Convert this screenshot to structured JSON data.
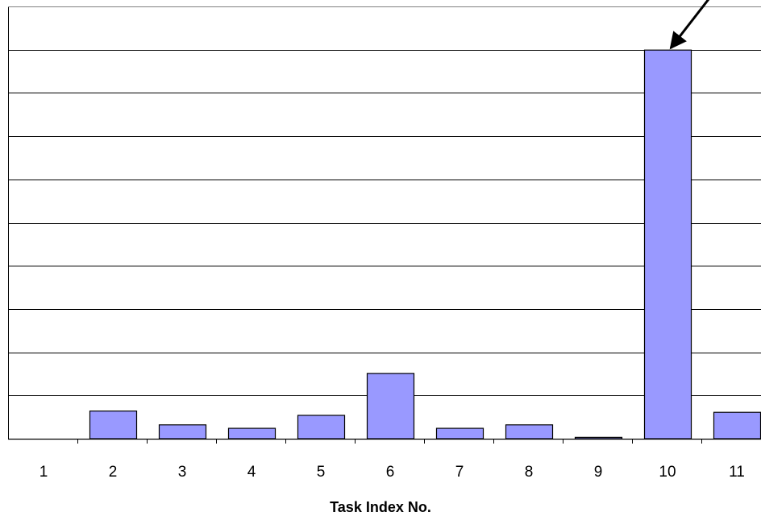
{
  "chart_data": {
    "type": "bar",
    "title": "",
    "xlabel": "Task Index No.",
    "ylabel": "",
    "categories": [
      "1",
      "2",
      "3",
      "4",
      "5",
      "6",
      "7",
      "8",
      "9",
      "10",
      "11"
    ],
    "values": [
      0,
      0.65,
      0.33,
      0.25,
      0.55,
      1.52,
      0.25,
      0.33,
      0.04,
      9.0,
      0.62
    ],
    "ylim": [
      0,
      10
    ],
    "grid": true,
    "legend": "none",
    "bar_color": "#9999ff",
    "bar_edge_color": "#000000",
    "gridline_color": "#000000",
    "annotation": {
      "type": "arrow",
      "target_category": "10"
    }
  }
}
